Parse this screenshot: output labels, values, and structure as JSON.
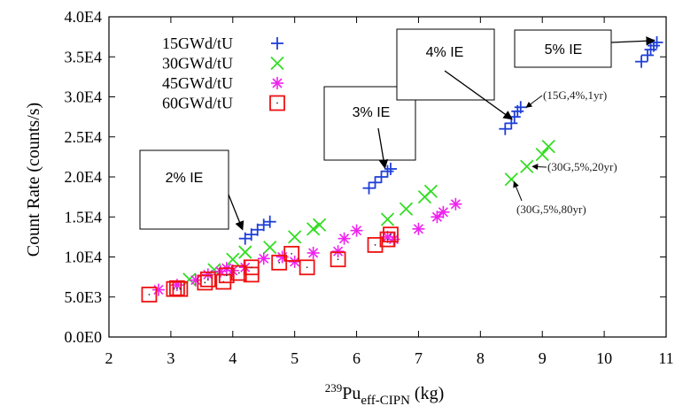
{
  "chart_data": {
    "type": "scatter",
    "title": "",
    "xlabel_pre": "239",
    "xlabel_main": "Pu",
    "xlabel_sub": "eff-CIPN",
    "xlabel_unit": " (kg)",
    "ylabel": "Count Rate (counts/s)",
    "xlim": [
      2,
      11
    ],
    "ylim": [
      0,
      40000
    ],
    "x_ticks": [
      "2",
      "3",
      "4",
      "5",
      "6",
      "7",
      "8",
      "9",
      "10",
      "11"
    ],
    "y_ticks": [
      "0.0E0",
      "5.0E3",
      "1.0E4",
      "1.5E4",
      "2.0E4",
      "2.5E4",
      "3.0E4",
      "3.5E4",
      "4.0E4"
    ],
    "grid": false,
    "legend_position": "top-left",
    "series": [
      {
        "name": "15GWd/tU",
        "marker": "plus",
        "color": "#1f3fd6",
        "points": [
          [
            4.2,
            12300
          ],
          [
            4.3,
            12800
          ],
          [
            4.4,
            13400
          ],
          [
            4.5,
            14000
          ],
          [
            4.6,
            14400
          ],
          [
            6.2,
            18600
          ],
          [
            6.3,
            19300
          ],
          [
            6.4,
            20000
          ],
          [
            6.5,
            20700
          ],
          [
            6.55,
            21000
          ],
          [
            8.4,
            26000
          ],
          [
            8.5,
            26700
          ],
          [
            8.55,
            27500
          ],
          [
            8.6,
            28200
          ],
          [
            8.65,
            28700
          ],
          [
            10.6,
            34400
          ],
          [
            10.7,
            35200
          ],
          [
            10.75,
            35900
          ],
          [
            10.8,
            36400
          ],
          [
            10.85,
            36800
          ]
        ]
      },
      {
        "name": "30GWd/tU",
        "marker": "cross",
        "color": "#33dd22",
        "points": [
          [
            3.3,
            7200
          ],
          [
            3.7,
            8400
          ],
          [
            4.0,
            9700
          ],
          [
            4.2,
            10600
          ],
          [
            4.6,
            11200
          ],
          [
            5.0,
            12500
          ],
          [
            5.3,
            13500
          ],
          [
            5.4,
            14000
          ],
          [
            6.5,
            14700
          ],
          [
            6.8,
            16000
          ],
          [
            7.1,
            17500
          ],
          [
            7.2,
            18200
          ],
          [
            8.5,
            19700
          ],
          [
            8.75,
            21300
          ],
          [
            9.0,
            22800
          ],
          [
            9.1,
            23800
          ]
        ]
      },
      {
        "name": "45GWd/tU",
        "marker": "star",
        "color": "#ee22ee",
        "points": [
          [
            2.8,
            5900
          ],
          [
            3.1,
            6500
          ],
          [
            3.4,
            7100
          ],
          [
            3.6,
            7800
          ],
          [
            3.8,
            8200
          ],
          [
            3.9,
            8600
          ],
          [
            4.0,
            8300
          ],
          [
            4.2,
            8700
          ],
          [
            4.5,
            9800
          ],
          [
            4.8,
            10000
          ],
          [
            5.0,
            9400
          ],
          [
            5.3,
            10500
          ],
          [
            5.7,
            10700
          ],
          [
            5.8,
            12300
          ],
          [
            6.0,
            13300
          ],
          [
            6.5,
            12500
          ],
          [
            6.6,
            12200
          ],
          [
            7.0,
            13500
          ],
          [
            7.3,
            15000
          ],
          [
            7.4,
            15600
          ],
          [
            7.6,
            16600
          ]
        ]
      },
      {
        "name": "60GWd/tU",
        "marker": "square",
        "color": "#ee1111",
        "points": [
          [
            2.65,
            5300
          ],
          [
            3.05,
            6000
          ],
          [
            3.1,
            6100
          ],
          [
            3.15,
            6000
          ],
          [
            3.55,
            6800
          ],
          [
            3.6,
            7200
          ],
          [
            3.85,
            6900
          ],
          [
            3.9,
            7700
          ],
          [
            4.1,
            8000
          ],
          [
            4.3,
            7800
          ],
          [
            4.3,
            8700
          ],
          [
            4.75,
            9300
          ],
          [
            4.95,
            10400
          ],
          [
            5.2,
            8700
          ],
          [
            5.7,
            9700
          ],
          [
            6.3,
            11500
          ],
          [
            6.5,
            12200
          ],
          [
            6.55,
            12800
          ]
        ]
      }
    ],
    "annotation_boxes": [
      {
        "label": "2% IE",
        "target": [
          4.2,
          13100
        ]
      },
      {
        "label": "3% IE",
        "target": [
          6.5,
          20800
        ]
      },
      {
        "label": "4% IE",
        "target": [
          8.55,
          26900
        ]
      },
      {
        "label": "5% IE",
        "target": [
          10.85,
          36700
        ]
      }
    ],
    "point_labels": [
      {
        "text": "(15G,4%,1yr)",
        "target": [
          8.7,
          28700
        ]
      },
      {
        "text": "(30G,5%,20yr)",
        "target": [
          8.8,
          21300
        ]
      },
      {
        "text": "(30G,5%,80yr)",
        "target": [
          8.5,
          19700
        ]
      }
    ]
  }
}
